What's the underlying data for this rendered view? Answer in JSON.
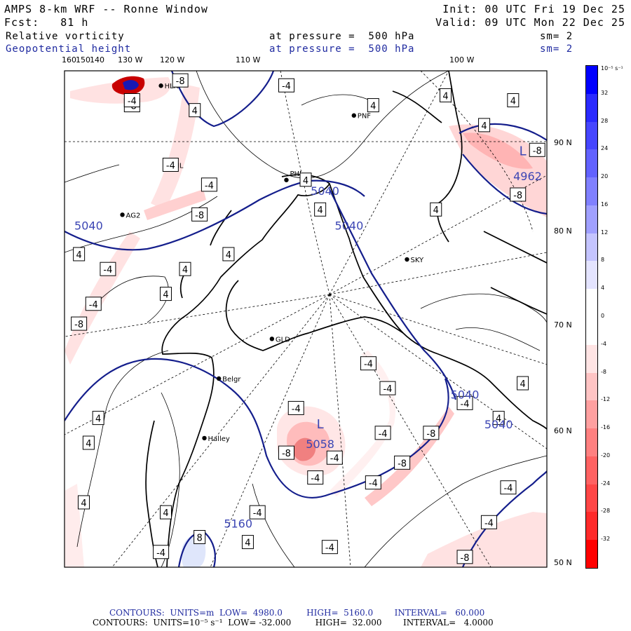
{
  "header": {
    "model": "AMPS 8-km WRF -- Ronne Window",
    "init": "Init: 00 UTC Fri 19 Dec 25",
    "fcst": "Fcst:   81 h",
    "valid": "Valid: 09 UTC Mon 22 Dec 25",
    "field1": {
      "name": "Relative vorticity",
      "level": "at pressure =  500 hPa",
      "sm": "sm= 2"
    },
    "field2": {
      "name": "Geopotential height",
      "level": "at pressure =  500 hPa",
      "sm": "sm= 2"
    }
  },
  "lon_labels": [
    "160",
    "150",
    "140",
    "130 W",
    "120 W",
    "110 W",
    "100 W"
  ],
  "lat_labels": [
    "90 N",
    "80 N",
    "70 N",
    "60 N",
    "50 N"
  ],
  "stations": [
    {
      "name": "HLK",
      "xy": [
        0.2,
        0.03
      ]
    },
    {
      "name": "PNF",
      "xy": [
        0.6,
        0.09
      ]
    },
    {
      "name": "PHL",
      "xy": [
        0.46,
        0.22
      ]
    },
    {
      "name": "ZHL",
      "xy": [
        0.21,
        0.19
      ]
    },
    {
      "name": "AG2",
      "xy": [
        0.12,
        0.29
      ]
    },
    {
      "name": "SKY",
      "xy": [
        0.71,
        0.38
      ]
    },
    {
      "name": "GLD",
      "xy": [
        0.43,
        0.54
      ]
    },
    {
      "name": "Belgr",
      "xy": [
        0.32,
        0.62
      ]
    },
    {
      "name": "Halley",
      "xy": [
        0.29,
        0.74
      ]
    }
  ],
  "height_labels": [
    {
      "text": "5040",
      "xy": [
        0.05,
        0.32
      ],
      "color": "#3c46b4"
    },
    {
      "text": "5040",
      "xy": [
        0.54,
        0.25
      ],
      "color": "#3c46b4"
    },
    {
      "text": "5040",
      "xy": [
        0.59,
        0.32
      ],
      "color": "#3c46b4"
    },
    {
      "text": "5040",
      "xy": [
        0.83,
        0.66
      ],
      "color": "#3c46b4"
    },
    {
      "text": "5040",
      "xy": [
        0.9,
        0.72
      ],
      "color": "#3c46b4"
    },
    {
      "text": "5160",
      "xy": [
        0.36,
        0.92
      ],
      "color": "#3c46b4"
    },
    {
      "text": "L",
      "xy": [
        0.53,
        0.72
      ],
      "color": "#3c46b4"
    },
    {
      "text": "5058",
      "xy": [
        0.53,
        0.76
      ],
      "color": "#3c46b4"
    },
    {
      "text": "L",
      "xy": [
        0.95,
        0.17
      ],
      "color": "#3c46b4"
    },
    {
      "text": "4962",
      "xy": [
        0.96,
        0.22
      ],
      "color": "#3c46b4"
    }
  ],
  "vort_labels": [
    {
      "text": "-4",
      "xy": [
        0.46,
        0.03
      ]
    },
    {
      "text": "-8",
      "xy": [
        0.14,
        0.07
      ]
    },
    {
      "text": "-4",
      "xy": [
        0.14,
        0.06
      ]
    },
    {
      "text": "-8",
      "xy": [
        0.24,
        0.02
      ]
    },
    {
      "text": "4",
      "xy": [
        0.27,
        0.08
      ]
    },
    {
      "text": "4",
      "xy": [
        0.64,
        0.07
      ]
    },
    {
      "text": "4",
      "xy": [
        0.79,
        0.05
      ]
    },
    {
      "text": "4",
      "xy": [
        0.87,
        0.11
      ]
    },
    {
      "text": "4",
      "xy": [
        0.93,
        0.06
      ]
    },
    {
      "text": "-8",
      "xy": [
        0.98,
        0.16
      ]
    },
    {
      "text": "-8",
      "xy": [
        0.94,
        0.25
      ]
    },
    {
      "text": "-4",
      "xy": [
        0.22,
        0.19
      ]
    },
    {
      "text": "-4",
      "xy": [
        0.3,
        0.23
      ]
    },
    {
      "text": "-8",
      "xy": [
        0.28,
        0.29
      ]
    },
    {
      "text": "4",
      "xy": [
        0.5,
        0.22
      ]
    },
    {
      "text": "4",
      "xy": [
        0.53,
        0.28
      ]
    },
    {
      "text": "4",
      "xy": [
        0.77,
        0.28
      ]
    },
    {
      "text": "4",
      "xy": [
        0.03,
        0.37
      ]
    },
    {
      "text": "-4",
      "xy": [
        0.09,
        0.4
      ]
    },
    {
      "text": "4",
      "xy": [
        0.25,
        0.4
      ]
    },
    {
      "text": "4",
      "xy": [
        0.34,
        0.37
      ]
    },
    {
      "text": "4",
      "xy": [
        0.21,
        0.45
      ]
    },
    {
      "text": "-4",
      "xy": [
        0.06,
        0.47
      ]
    },
    {
      "text": "-8",
      "xy": [
        0.03,
        0.51
      ]
    },
    {
      "text": "-4",
      "xy": [
        0.63,
        0.59
      ]
    },
    {
      "text": "-4",
      "xy": [
        0.67,
        0.64
      ]
    },
    {
      "text": "-4",
      "xy": [
        0.48,
        0.68
      ]
    },
    {
      "text": "-4",
      "xy": [
        0.66,
        0.73
      ]
    },
    {
      "text": "-8",
      "xy": [
        0.46,
        0.77
      ]
    },
    {
      "text": "-4",
      "xy": [
        0.56,
        0.78
      ]
    },
    {
      "text": "-4",
      "xy": [
        0.52,
        0.82
      ]
    },
    {
      "text": "-4",
      "xy": [
        0.64,
        0.83
      ]
    },
    {
      "text": "-8",
      "xy": [
        0.76,
        0.73
      ]
    },
    {
      "text": "-8",
      "xy": [
        0.7,
        0.79
      ]
    },
    {
      "text": "-4",
      "xy": [
        0.83,
        0.67
      ]
    },
    {
      "text": "4",
      "xy": [
        0.95,
        0.63
      ]
    },
    {
      "text": "4",
      "xy": [
        0.9,
        0.7
      ]
    },
    {
      "text": "-4",
      "xy": [
        0.92,
        0.84
      ]
    },
    {
      "text": "-4",
      "xy": [
        0.88,
        0.91
      ]
    },
    {
      "text": "-8",
      "xy": [
        0.83,
        0.98
      ]
    },
    {
      "text": "4",
      "xy": [
        0.07,
        0.7
      ]
    },
    {
      "text": "4",
      "xy": [
        0.05,
        0.75
      ]
    },
    {
      "text": "4",
      "xy": [
        0.04,
        0.87
      ]
    },
    {
      "text": "4",
      "xy": [
        0.21,
        0.89
      ]
    },
    {
      "text": "-4",
      "xy": [
        0.2,
        0.97
      ]
    },
    {
      "text": "-4",
      "xy": [
        0.4,
        0.89
      ]
    },
    {
      "text": "8",
      "xy": [
        0.28,
        0.94
      ]
    },
    {
      "text": "4",
      "xy": [
        0.38,
        0.95
      ]
    },
    {
      "text": "-4",
      "xy": [
        0.55,
        0.96
      ]
    }
  ],
  "legend": {
    "unit": "10⁻⁵ s⁻¹",
    "ticks": [
      "32",
      "28",
      "24",
      "20",
      "16",
      "12",
      "8",
      "4",
      "0",
      "-4",
      "-8",
      "-12",
      "-16",
      "-20",
      "-24",
      "-28",
      "-32"
    ],
    "colors": [
      "#0000ff",
      "#2a2aff",
      "#4646ff",
      "#6262ff",
      "#8080ff",
      "#a0a0ff",
      "#c4c4ff",
      "#e4e4ff",
      "#ffffff",
      "#ffffff",
      "#ffe4e4",
      "#ffc4c4",
      "#ffa0a0",
      "#ff8080",
      "#ff6262",
      "#ff4646",
      "#ff2a2a",
      "#ff0000"
    ]
  },
  "footer": {
    "line1": "CONTOURS:  UNITS=m  LOW=  4980.0         HIGH=  5160.0        INTERVAL=   60.000",
    "line2": "CONTOURS:  UNITS=10⁻⁵ s⁻¹  LOW= -32.000         HIGH=  32.000        INTERVAL=   4.0000"
  },
  "colors": {
    "height": "#141e8c",
    "vort_label": "#000000",
    "header_blue": "#1f2aa0"
  }
}
